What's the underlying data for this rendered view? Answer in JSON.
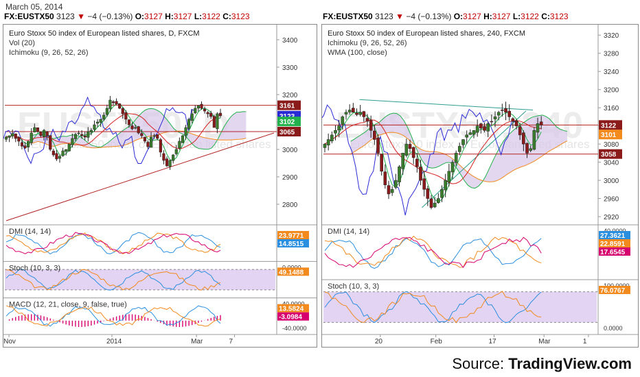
{
  "date": "March 05, 2014",
  "source_label": "Source:",
  "source_brand": "TradingView.com",
  "symbol_bars": [
    {
      "symbol": "FX:EUSTX50",
      "last": "3123",
      "change": "−4 (−0.13%)",
      "o_label": "O:",
      "o": "3127",
      "h_label": "H:",
      "h": "3127",
      "l_label": "L:",
      "l": "3122",
      "c_label": "C:",
      "c": "3123"
    },
    {
      "symbol": "FX:EUSTX50",
      "last": "3123",
      "change": "−4 (−0.13%)",
      "o_label": "O:",
      "o": "3127",
      "h_label": "H:",
      "h": "3127",
      "l_label": "L:",
      "l": "3122",
      "c_label": "C:",
      "c": "3123"
    }
  ],
  "colors": {
    "bull": "#3a7d2c",
    "bear": "#8b1a1a",
    "blue": "#2b2bd6",
    "green": "#22b14c",
    "red": "#d42020",
    "orange": "#f28a1e",
    "cloud": "#d9c9ea",
    "stochfill": "#e3d4f3",
    "magenta": "#d6006e",
    "resistance": "#b22222",
    "trend": "#2a9d8f"
  },
  "watermark": {
    "left": "EUSTX50, D",
    "right": "EUSTX50, 240",
    "sub": "Euro Stoxx 50 index of European listed shares"
  },
  "chart_data": [
    {
      "type": "candlestick",
      "title": "Euro Stoxx 50 index of European listed shares, D, FXCM",
      "indicators": [
        "Vol (20)",
        "Ichimoku (9, 26, 52, 26)"
      ],
      "y_ticks": [
        3400,
        3300,
        3200,
        3100,
        3000,
        2900,
        2800
      ],
      "ylim": [
        2730,
        3450
      ],
      "x_ticks": [
        "Nov",
        "2014",
        "Mar",
        "7"
      ],
      "x_tick_pos": [
        2,
        75,
        135,
        162
      ],
      "x_range": [
        0,
        190
      ],
      "closes": [
        3045,
        3050,
        3058,
        3040,
        3030,
        3012,
        3005,
        3030,
        3060,
        3080,
        3065,
        3050,
        3070,
        3050,
        3000,
        2980,
        2965,
        2975,
        2995,
        3000,
        3020,
        3040,
        3055,
        3060,
        3050,
        3045,
        3065,
        3070,
        3090,
        3100,
        3110,
        3125,
        3150,
        3180,
        3170,
        3165,
        3150,
        3130,
        3110,
        3090,
        3075,
        3080,
        3060,
        3050,
        3030,
        3010,
        3045,
        3050,
        3040,
        2990,
        2960,
        2940,
        2960,
        2980,
        3000,
        3030,
        3050,
        3080,
        3110,
        3130,
        3150,
        3160,
        3150,
        3140,
        3130,
        3120,
        3080,
        3130,
        3123
      ],
      "levels": [
        {
          "value": 3161,
          "label": "3161",
          "color": "#8b1a1a"
        },
        {
          "value": 3123,
          "label": "3123",
          "color": "#2b2bd6"
        },
        {
          "value": 3102,
          "label": "3102",
          "color": "#22b14c"
        },
        {
          "value": 3065,
          "label": "3065",
          "color": "#8b1a1a"
        }
      ],
      "hlines": [
        3161,
        3065
      ],
      "trendline": {
        "from": [
          0,
          2740
        ],
        "to": [
          190,
          3060
        ]
      },
      "panels": [
        {
          "name": "DMI (14, 14)",
          "labels": [
            {
              "text": "23.9771",
              "color": "#f28a1e"
            },
            {
              "text": "14.8515",
              "color": "#2b8fe0"
            }
          ]
        },
        {
          "name": "Stoch (10, 3, 3)",
          "labels": [
            {
              "text": "49.1488",
              "color": "#f28a1e"
            }
          ],
          "ticks": [
            "0.0000"
          ]
        },
        {
          "name": "MACD (12, 21, close, 9, false, true)",
          "labels": [
            {
              "text": "13.5824",
              "color": "#f28a1e"
            },
            {
              "text": "-3.0984",
              "color": "#d6006e"
            }
          ],
          "ticks": [
            "40.0000",
            "-40.0000"
          ]
        }
      ]
    },
    {
      "type": "candlestick",
      "title": "Euro Stoxx 50 index of European listed shares, 240, FXCM",
      "indicators": [
        "Ichimoku (9, 26, 52, 26)",
        "WMA (100, close)"
      ],
      "y_ticks": [
        3320,
        3280,
        3240,
        3200,
        3160,
        3120,
        3080,
        3040,
        3000,
        2960,
        2920
      ],
      "ylim": [
        2905,
        3340
      ],
      "x_ticks": [
        "20",
        "Feb",
        "17",
        "Mar",
        "1"
      ],
      "x_tick_pos": [
        40,
        80,
        122,
        158,
        190
      ],
      "x_range": [
        0,
        195
      ],
      "closes": [
        3080,
        3090,
        3100,
        3110,
        3120,
        3140,
        3150,
        3155,
        3150,
        3145,
        3150,
        3140,
        3130,
        3110,
        3090,
        3060,
        3020,
        2990,
        2970,
        2980,
        3000,
        3030,
        3060,
        3080,
        3070,
        3050,
        3030,
        3000,
        2980,
        2960,
        2940,
        2950,
        2960,
        2980,
        3000,
        3020,
        3040,
        3060,
        3075,
        3090,
        3100,
        3105,
        3110,
        3120,
        3115,
        3110,
        3125,
        3130,
        3140,
        3150,
        3155,
        3150,
        3140,
        3130,
        3120,
        3100,
        3080,
        3060,
        3070,
        3110,
        3125,
        3122
      ],
      "levels": [
        {
          "value": 3122,
          "label": "3122",
          "color": "#8b1a1a"
        },
        {
          "value": 3101,
          "label": "3101",
          "color": "#f28a1e"
        },
        {
          "value": 3058,
          "label": "3058",
          "color": "#8b1a1a"
        }
      ],
      "hlines": [
        3122,
        3058
      ],
      "trendline": {
        "from": [
          70,
          2940
        ],
        "to": [
          145,
          3153
        ]
      },
      "resistance": {
        "from": [
          25,
          3178
        ],
        "to": [
          150,
          3155
        ]
      },
      "panels": [
        {
          "name": "DMI (14, 14)",
          "labels": [
            {
              "text": "27.3621",
              "color": "#2b8fe0"
            },
            {
              "text": "22.8591",
              "color": "#f28a1e"
            },
            {
              "text": "17.6545",
              "color": "#d6006e"
            }
          ],
          "ticks": [
            "40.0000"
          ]
        },
        {
          "name": "Stoch (10, 3, 3)",
          "labels": [
            {
              "text": "76.0767",
              "color": "#f28a1e"
            }
          ],
          "ticks": [
            "100.0000",
            "0.0000"
          ]
        }
      ]
    }
  ]
}
